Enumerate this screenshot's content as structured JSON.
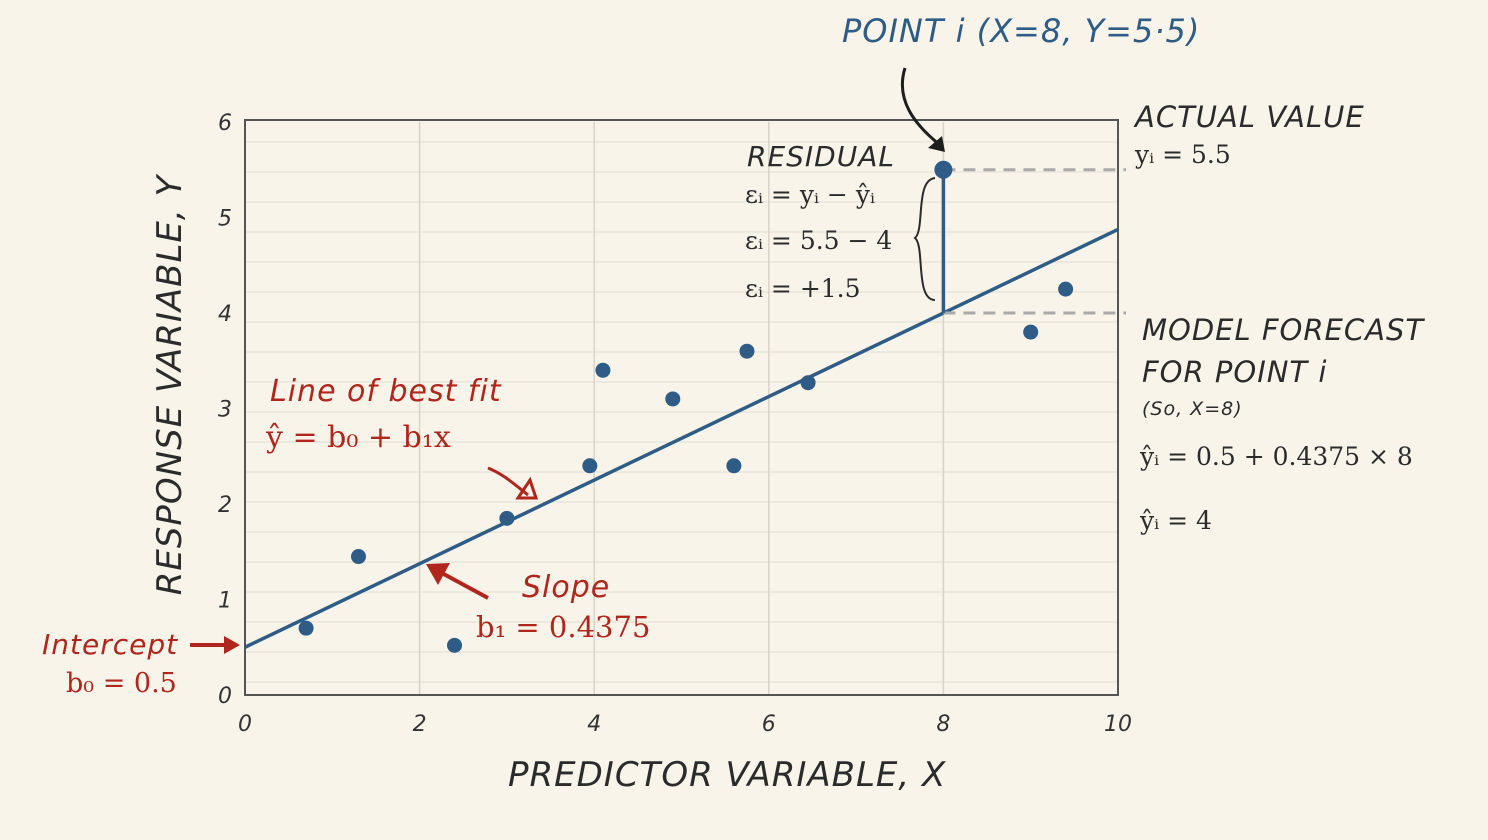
{
  "chart_data": {
    "type": "scatter",
    "title": "",
    "xlabel": "PREDICTOR VARIABLE, X",
    "ylabel": "RESPONSE VARIABLE, Y",
    "xlim": [
      0,
      10
    ],
    "ylim": [
      0,
      6
    ],
    "xticks": [
      "0",
      "2",
      "4",
      "6",
      "8",
      "10"
    ],
    "yticks": [
      "0",
      "1",
      "2",
      "3",
      "4",
      "5",
      "6"
    ],
    "grid": true,
    "points": [
      {
        "x": 0.7,
        "y": 0.7
      },
      {
        "x": 1.3,
        "y": 1.45
      },
      {
        "x": 2.4,
        "y": 0.52
      },
      {
        "x": 3.0,
        "y": 1.85
      },
      {
        "x": 3.95,
        "y": 2.4
      },
      {
        "x": 4.1,
        "y": 3.4
      },
      {
        "x": 4.9,
        "y": 3.1
      },
      {
        "x": 5.6,
        "y": 2.4
      },
      {
        "x": 5.75,
        "y": 3.6
      },
      {
        "x": 6.45,
        "y": 3.27
      },
      {
        "x": 8,
        "y": 5.5
      },
      {
        "x": 9.0,
        "y": 3.8
      },
      {
        "x": 9.4,
        "y": 4.25
      }
    ],
    "fit_line": {
      "intercept": 0.5,
      "slope": 0.4375
    },
    "highlight_point": {
      "x": 8,
      "y": 5.5,
      "forecast": 4,
      "residual": 1.5
    },
    "colors": {
      "points": "#2e5c86",
      "line": "#2e5c86",
      "annotation": "#b0261c",
      "text": "#2b2b2b",
      "background": "#f8f4ea"
    }
  },
  "annotations": {
    "point_i": "POINT i (X=8, Y=5·5)",
    "actual_title": "ACTUAL VALUE",
    "actual_eq": "yᵢ = 5.5",
    "residual_title": "RESIDUAL",
    "residual_eq1": "εᵢ = yᵢ − ŷᵢ",
    "residual_eq2": "εᵢ = 5.5 − 4",
    "residual_eq3": "εᵢ = +1.5",
    "forecast_title1": "MODEL FORECAST",
    "forecast_title2": "FOR POINT i",
    "forecast_note": "(So, X=8)",
    "forecast_eq1": "ŷᵢ = 0.5 + 0.4375 × 8",
    "forecast_eq2": "ŷᵢ = 4",
    "fit_title": "Line of best fit",
    "fit_eq": "ŷ = b₀ + b₁x",
    "slope_title": "Slope",
    "slope_eq": "b₁ = 0.4375",
    "intercept_title": "Intercept",
    "intercept_eq": "b₀ = 0.5"
  }
}
